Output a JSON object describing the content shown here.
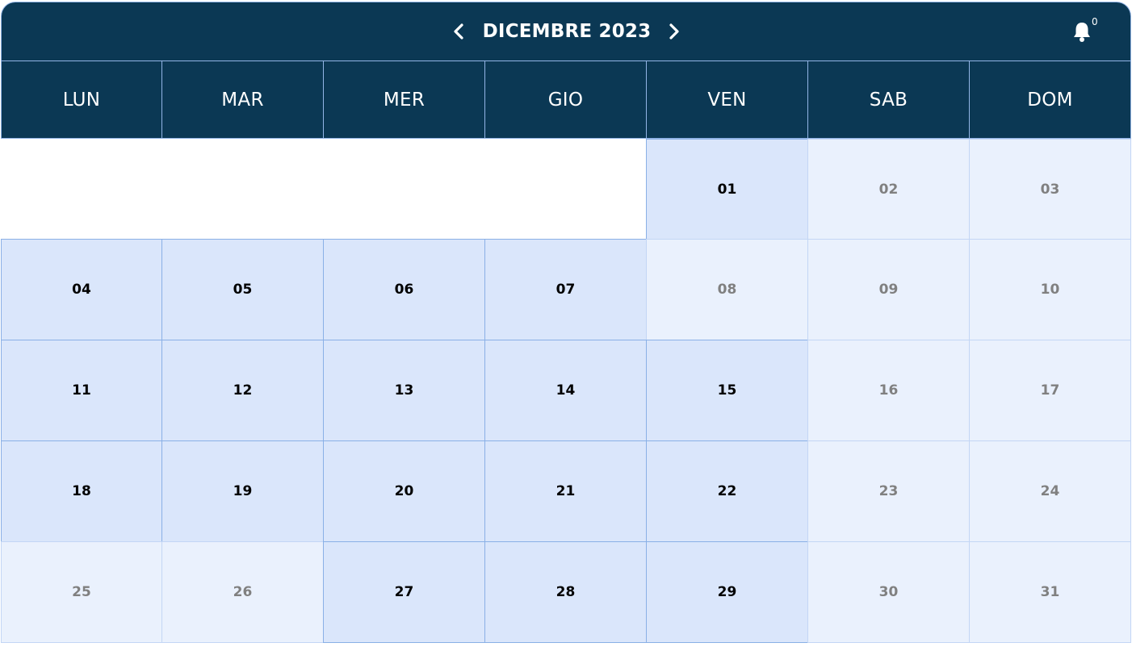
{
  "header": {
    "month_title": "DICEMBRE 2023",
    "prev_icon": "chevron-left-icon",
    "next_icon": "chevron-right-icon",
    "notification_icon": "bell-icon",
    "notification_count": "0"
  },
  "weekdays": [
    "LUN",
    "MAR",
    "MER",
    "GIO",
    "VEN",
    "SAB",
    "DOM"
  ],
  "days": [
    {
      "label": "",
      "state": "blank"
    },
    {
      "label": "",
      "state": "blank"
    },
    {
      "label": "",
      "state": "blank"
    },
    {
      "label": "",
      "state": "blank"
    },
    {
      "label": "01",
      "state": "active"
    },
    {
      "label": "02",
      "state": "inactive"
    },
    {
      "label": "03",
      "state": "inactive"
    },
    {
      "label": "04",
      "state": "active"
    },
    {
      "label": "05",
      "state": "active"
    },
    {
      "label": "06",
      "state": "active"
    },
    {
      "label": "07",
      "state": "active"
    },
    {
      "label": "08",
      "state": "inactive"
    },
    {
      "label": "09",
      "state": "inactive"
    },
    {
      "label": "10",
      "state": "inactive"
    },
    {
      "label": "11",
      "state": "active"
    },
    {
      "label": "12",
      "state": "active"
    },
    {
      "label": "13",
      "state": "active"
    },
    {
      "label": "14",
      "state": "active"
    },
    {
      "label": "15",
      "state": "active"
    },
    {
      "label": "16",
      "state": "inactive"
    },
    {
      "label": "17",
      "state": "inactive"
    },
    {
      "label": "18",
      "state": "active"
    },
    {
      "label": "19",
      "state": "active"
    },
    {
      "label": "20",
      "state": "active"
    },
    {
      "label": "21",
      "state": "active"
    },
    {
      "label": "22",
      "state": "active"
    },
    {
      "label": "23",
      "state": "inactive"
    },
    {
      "label": "24",
      "state": "inactive"
    },
    {
      "label": "25",
      "state": "inactive"
    },
    {
      "label": "26",
      "state": "inactive"
    },
    {
      "label": "27",
      "state": "active"
    },
    {
      "label": "28",
      "state": "active"
    },
    {
      "label": "29",
      "state": "active"
    },
    {
      "label": "30",
      "state": "inactive"
    },
    {
      "label": "31",
      "state": "inactive"
    }
  ],
  "colors": {
    "header_bg": "#0b3854",
    "active_day_bg": "#dae6fb",
    "inactive_day_bg": "#eaf1fd",
    "grid_border": "#8ab0e6",
    "inactive_text": "#808080"
  }
}
